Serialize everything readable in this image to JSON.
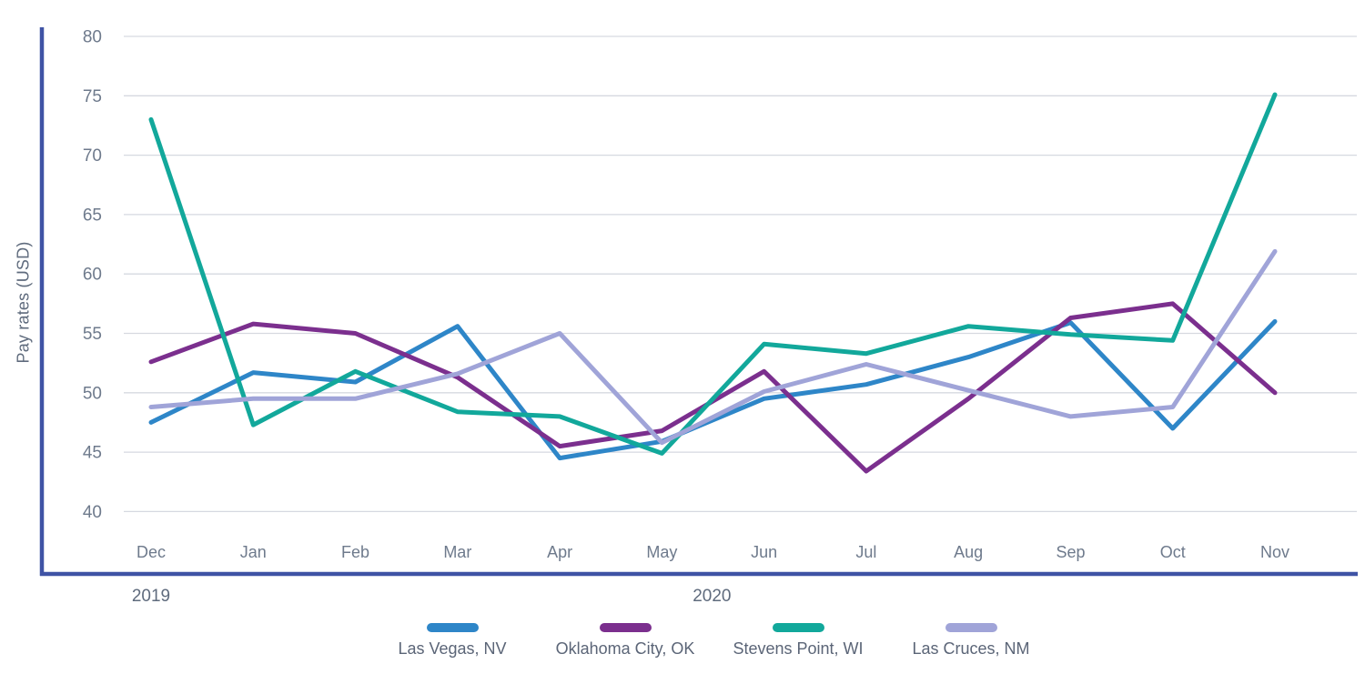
{
  "chart_data": {
    "type": "line",
    "title": "",
    "xlabel": "",
    "ylabel": "Pay rates (USD)",
    "categories": [
      "Dec",
      "Jan",
      "Feb",
      "Mar",
      "Apr",
      "May",
      "Jun",
      "Jul",
      "Aug",
      "Sep",
      "Oct",
      "Nov"
    ],
    "year_labels": [
      {
        "text": "2019",
        "month_index": 0
      },
      {
        "text": "2020",
        "month_index": 5.49
      }
    ],
    "ylim": [
      40,
      80
    ],
    "yticks": [
      80,
      75,
      70,
      65,
      60,
      55,
      50,
      45,
      40
    ],
    "grid": "horizontal",
    "legend_position": "bottom",
    "series": [
      {
        "name": "Las Vegas, NV",
        "color": "#2e86c8",
        "values": [
          47.5,
          51.7,
          50.9,
          55.6,
          44.5,
          45.9,
          49.5,
          50.7,
          53.0,
          55.9,
          47.0,
          56.0
        ]
      },
      {
        "name": "Oklahoma City, OK",
        "color": "#7b2f8e",
        "values": [
          52.6,
          55.8,
          55.0,
          51.3,
          45.5,
          46.8,
          51.8,
          43.4,
          49.5,
          56.3,
          57.5,
          50.0
        ]
      },
      {
        "name": "Stevens Point, WI",
        "color": "#12a89b",
        "values": [
          73.0,
          47.3,
          51.8,
          48.4,
          48.0,
          44.9,
          54.1,
          53.3,
          55.6,
          54.9,
          54.4,
          75.1
        ]
      },
      {
        "name": "Las Cruces, NM",
        "color": "#a0a4d8",
        "values": [
          48.8,
          49.5,
          49.5,
          51.6,
          55.0,
          45.8,
          50.1,
          52.4,
          50.2,
          48.0,
          48.8,
          61.9
        ]
      }
    ]
  },
  "colors": {
    "axis": "#3f53a5",
    "gridline": "#d6d9e0",
    "tick_text": "#6e7a8c",
    "month_text": "#6e7a8c",
    "year_text": "#5f6b7d",
    "legend_text": "#5b6577",
    "background": "#ffffff"
  }
}
